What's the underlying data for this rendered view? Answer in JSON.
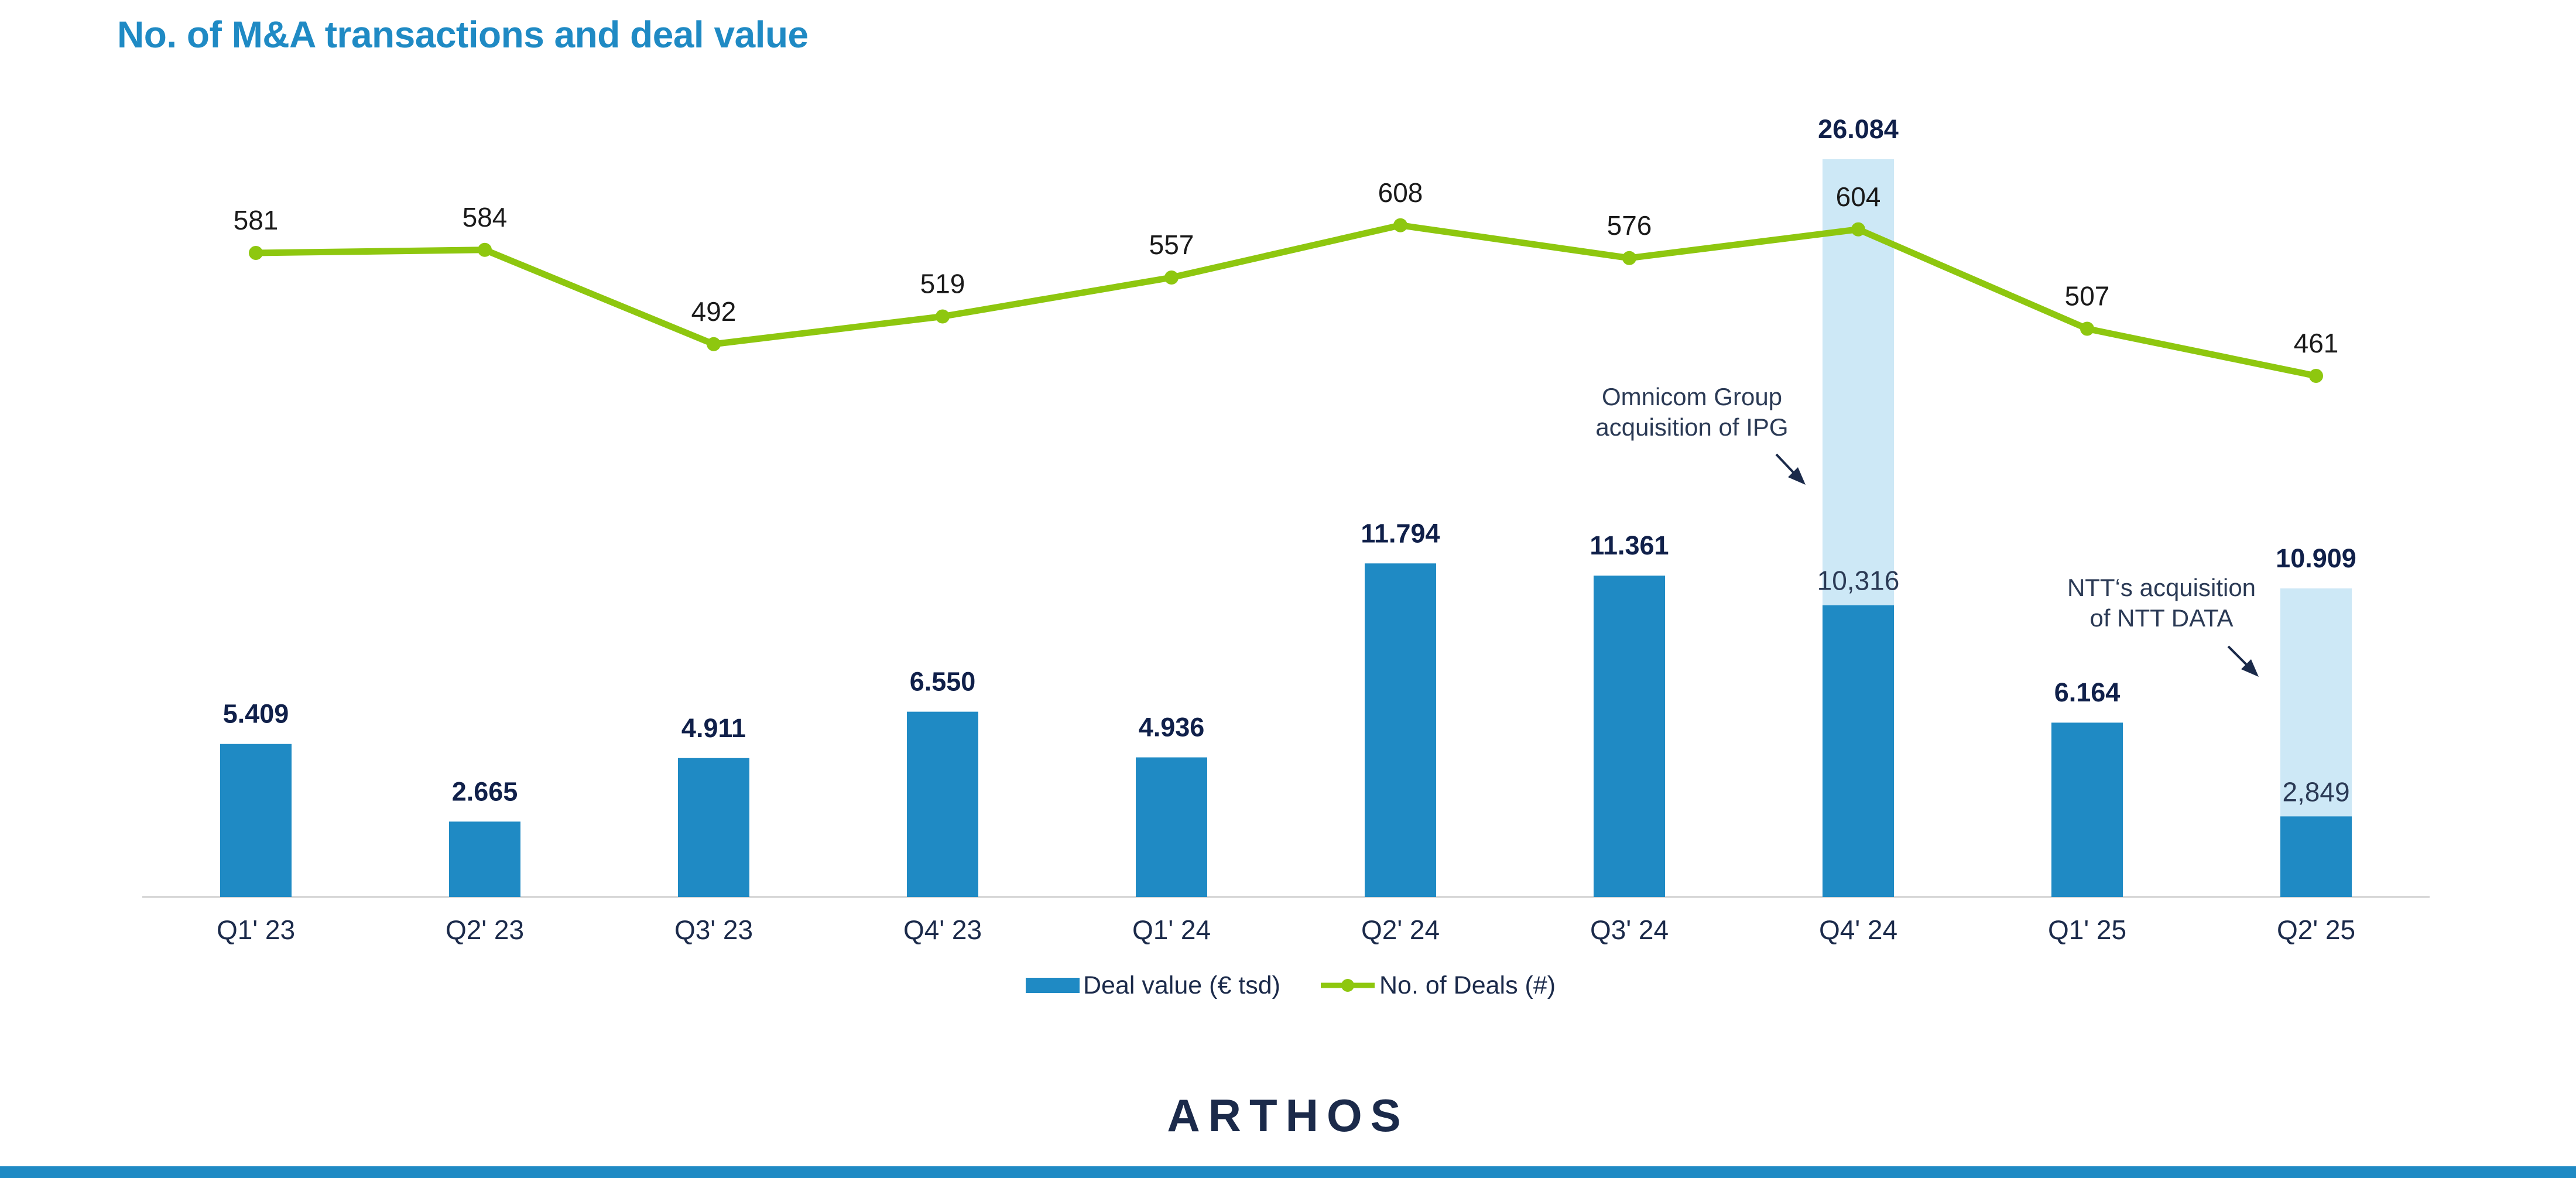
{
  "title": "No. of M&A transactions and deal value",
  "logo": "ARTHOS",
  "colors": {
    "title": "#1f8ac4",
    "bar": "#1f8ac4",
    "bar_highlight": "#cde8f6",
    "line": "#8ec70f",
    "bar_label": "#10204a",
    "text": "#1b2a4a",
    "accent_bar": "#1f8ac4"
  },
  "chart_data": {
    "type": "bar",
    "categories": [
      "Q1' 23",
      "Q2' 23",
      "Q3' 23",
      "Q4' 23",
      "Q1' 24",
      "Q2' 24",
      "Q3' 24",
      "Q4' 24",
      "Q1' 25",
      "Q2' 25"
    ],
    "series": [
      {
        "name": "Deal value (€ tsd)",
        "type": "bar",
        "values": [
          5409,
          2665,
          4911,
          6550,
          4936,
          11794,
          11361,
          26084,
          6164,
          10909
        ],
        "labels": [
          "5.409",
          "2.665",
          "4.911",
          "6.550",
          "4.936",
          "11.794",
          "11.361",
          "26.084",
          "6.164",
          "10.909"
        ],
        "base_values": [
          null,
          null,
          null,
          null,
          null,
          null,
          null,
          10316,
          null,
          2849
        ],
        "base_labels": [
          null,
          null,
          null,
          null,
          null,
          null,
          null,
          "10,316",
          null,
          "2,849"
        ]
      },
      {
        "name": "No. of Deals (#)",
        "type": "line",
        "values": [
          581,
          584,
          492,
          519,
          557,
          608,
          576,
          604,
          507,
          461
        ],
        "labels": [
          "581",
          "584",
          "492",
          "519",
          "557",
          "608",
          "576",
          "604",
          "507",
          "461"
        ]
      }
    ],
    "annotations": [
      {
        "category": "Q4' 24",
        "lines": [
          "Omnicom Group",
          "acquisition of IPG"
        ]
      },
      {
        "category": "Q2' 25",
        "lines": [
          "NTT‘s acquisition",
          "of NTT DATA"
        ]
      }
    ],
    "legend": "bottom-center"
  }
}
